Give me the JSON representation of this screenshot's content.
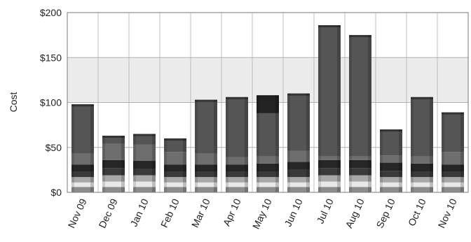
{
  "chart_data": {
    "type": "bar",
    "stacked": true,
    "title": "",
    "xlabel": "",
    "ylabel": "Cost",
    "ylim": [
      0,
      200
    ],
    "y_ticks": [
      "$0",
      "$50",
      "$100",
      "$150",
      "$200"
    ],
    "y_tick_values": [
      0,
      50,
      100,
      150,
      200
    ],
    "categories": [
      "Nov 09",
      "Dec 09",
      "Jan 10",
      "Feb 10",
      "Mar 10",
      "Apr 10",
      "May 10",
      "Jun 10",
      "Jul 10",
      "Aug 10",
      "Sep 10",
      "Oct 10",
      "Nov 10"
    ],
    "totals": [
      98,
      63,
      65,
      60,
      103,
      106,
      108,
      110,
      186,
      175,
      70,
      106,
      89
    ],
    "series": [
      {
        "values": [
          6,
          6,
          6,
          6,
          6,
          6,
          6,
          6,
          6,
          6,
          6,
          6,
          6
        ]
      },
      {
        "values": [
          5,
          6,
          6,
          5,
          5,
          5,
          5,
          5,
          6,
          6,
          5,
          5,
          5
        ]
      },
      {
        "values": [
          6,
          7,
          7,
          6,
          6,
          6,
          6,
          6,
          7,
          7,
          6,
          6,
          6
        ]
      },
      {
        "values": [
          6,
          8,
          7,
          6,
          6,
          6,
          6,
          8,
          8,
          8,
          7,
          6,
          6
        ]
      },
      {
        "values": [
          8,
          9,
          9,
          8,
          8,
          8,
          9,
          9,
          9,
          9,
          9,
          9,
          8
        ]
      },
      {
        "values": [
          12,
          18,
          18,
          14,
          12,
          8,
          8,
          12,
          4,
          4,
          8,
          8,
          14
        ]
      },
      {
        "values": [
          55,
          9,
          12,
          15,
          60,
          67,
          48,
          64,
          146,
          135,
          29,
          66,
          44
        ]
      },
      {
        "values": [
          0,
          0,
          0,
          0,
          0,
          0,
          20,
          0,
          0,
          0,
          0,
          0,
          0
        ]
      }
    ],
    "series_colors": [
      "#8c8c8c",
      "#e8e8e8",
      "#a8a8a8",
      "#3a3a3a",
      "#262626",
      "#6e6e6e",
      "#555555",
      "#222222"
    ],
    "grid": true,
    "shaded_band": [
      100,
      150
    ],
    "colors": {
      "plot_background": "#ffffff",
      "band": "#ececec",
      "grid": "#b0b0b0",
      "frame": "#7a7a7a"
    }
  }
}
